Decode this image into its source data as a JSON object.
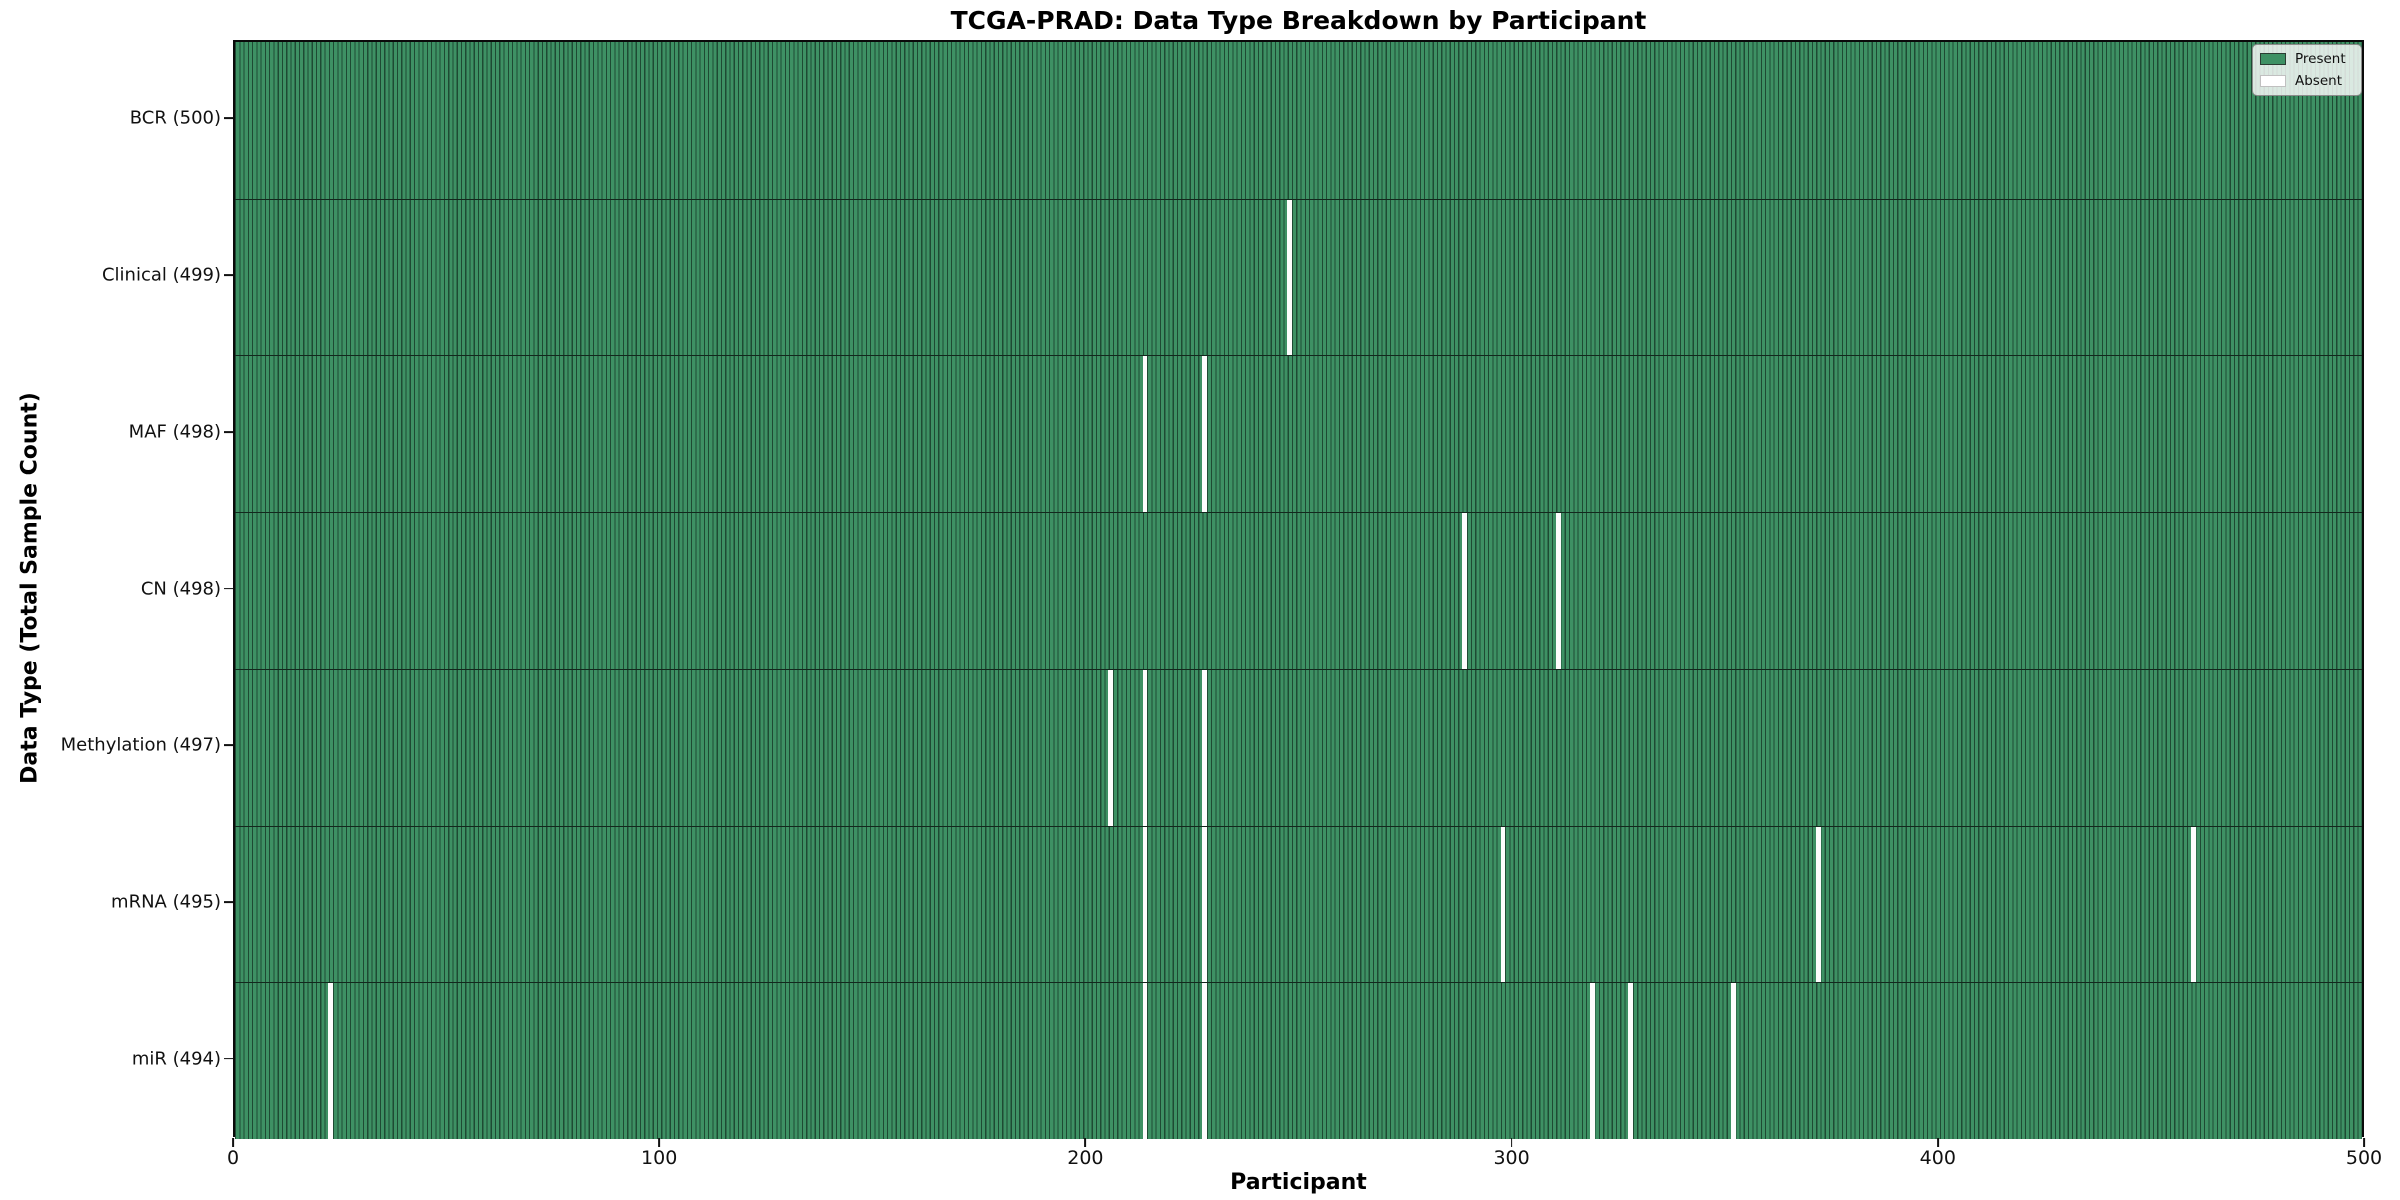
{
  "title": "TCGA-PRAD: Data Type Breakdown by Participant",
  "x_axis_label": "Participant",
  "y_axis_label": "Data Type (Total Sample Count)",
  "legend": {
    "entries": [
      {
        "label": "Present",
        "swatch": "present-color"
      },
      {
        "label": "Absent",
        "swatch": "absent-color"
      }
    ]
  },
  "chart_data": {
    "type": "heatmap",
    "title": "TCGA-PRAD: Data Type Breakdown by Participant",
    "xlabel": "Participant",
    "ylabel": "Data Type (Total Sample Count)",
    "x_range": [
      0,
      500
    ],
    "x_ticks": [
      0,
      100,
      200,
      300,
      400,
      500
    ],
    "legend_position": "upper right",
    "grid": false,
    "rows": [
      {
        "name": "bcr",
        "label": "BCR (500)",
        "data_type": "BCR",
        "present_count": 500,
        "absent_participants": []
      },
      {
        "name": "clinical",
        "label": "Clinical (499)",
        "data_type": "Clinical",
        "present_count": 499,
        "absent_participants": [
          247
        ]
      },
      {
        "name": "maf",
        "label": "MAF (498)",
        "data_type": "MAF",
        "present_count": 498,
        "absent_participants": [
          213,
          227
        ]
      },
      {
        "name": "cn",
        "label": "CN (498)",
        "data_type": "CN",
        "present_count": 498,
        "absent_participants": [
          288,
          310
        ]
      },
      {
        "name": "methylation",
        "label": "Methylation (497)",
        "data_type": "Methylation",
        "present_count": 497,
        "absent_participants": [
          205,
          213,
          227
        ]
      },
      {
        "name": "mrna",
        "label": "mRNA (495)",
        "data_type": "mRNA",
        "present_count": 495,
        "absent_participants": [
          213,
          227,
          297,
          371,
          459
        ]
      },
      {
        "name": "mir",
        "label": "miR (494)",
        "data_type": "miR",
        "present_count": 494,
        "absent_participants": [
          22,
          213,
          227,
          318,
          327,
          351
        ]
      }
    ],
    "colors": {
      "present": "#3E9164",
      "absent": "#FDFDFD",
      "bar_edge": "#1E4A33",
      "row_divider": "#13281D",
      "spine": "#0A0A0A"
    }
  }
}
